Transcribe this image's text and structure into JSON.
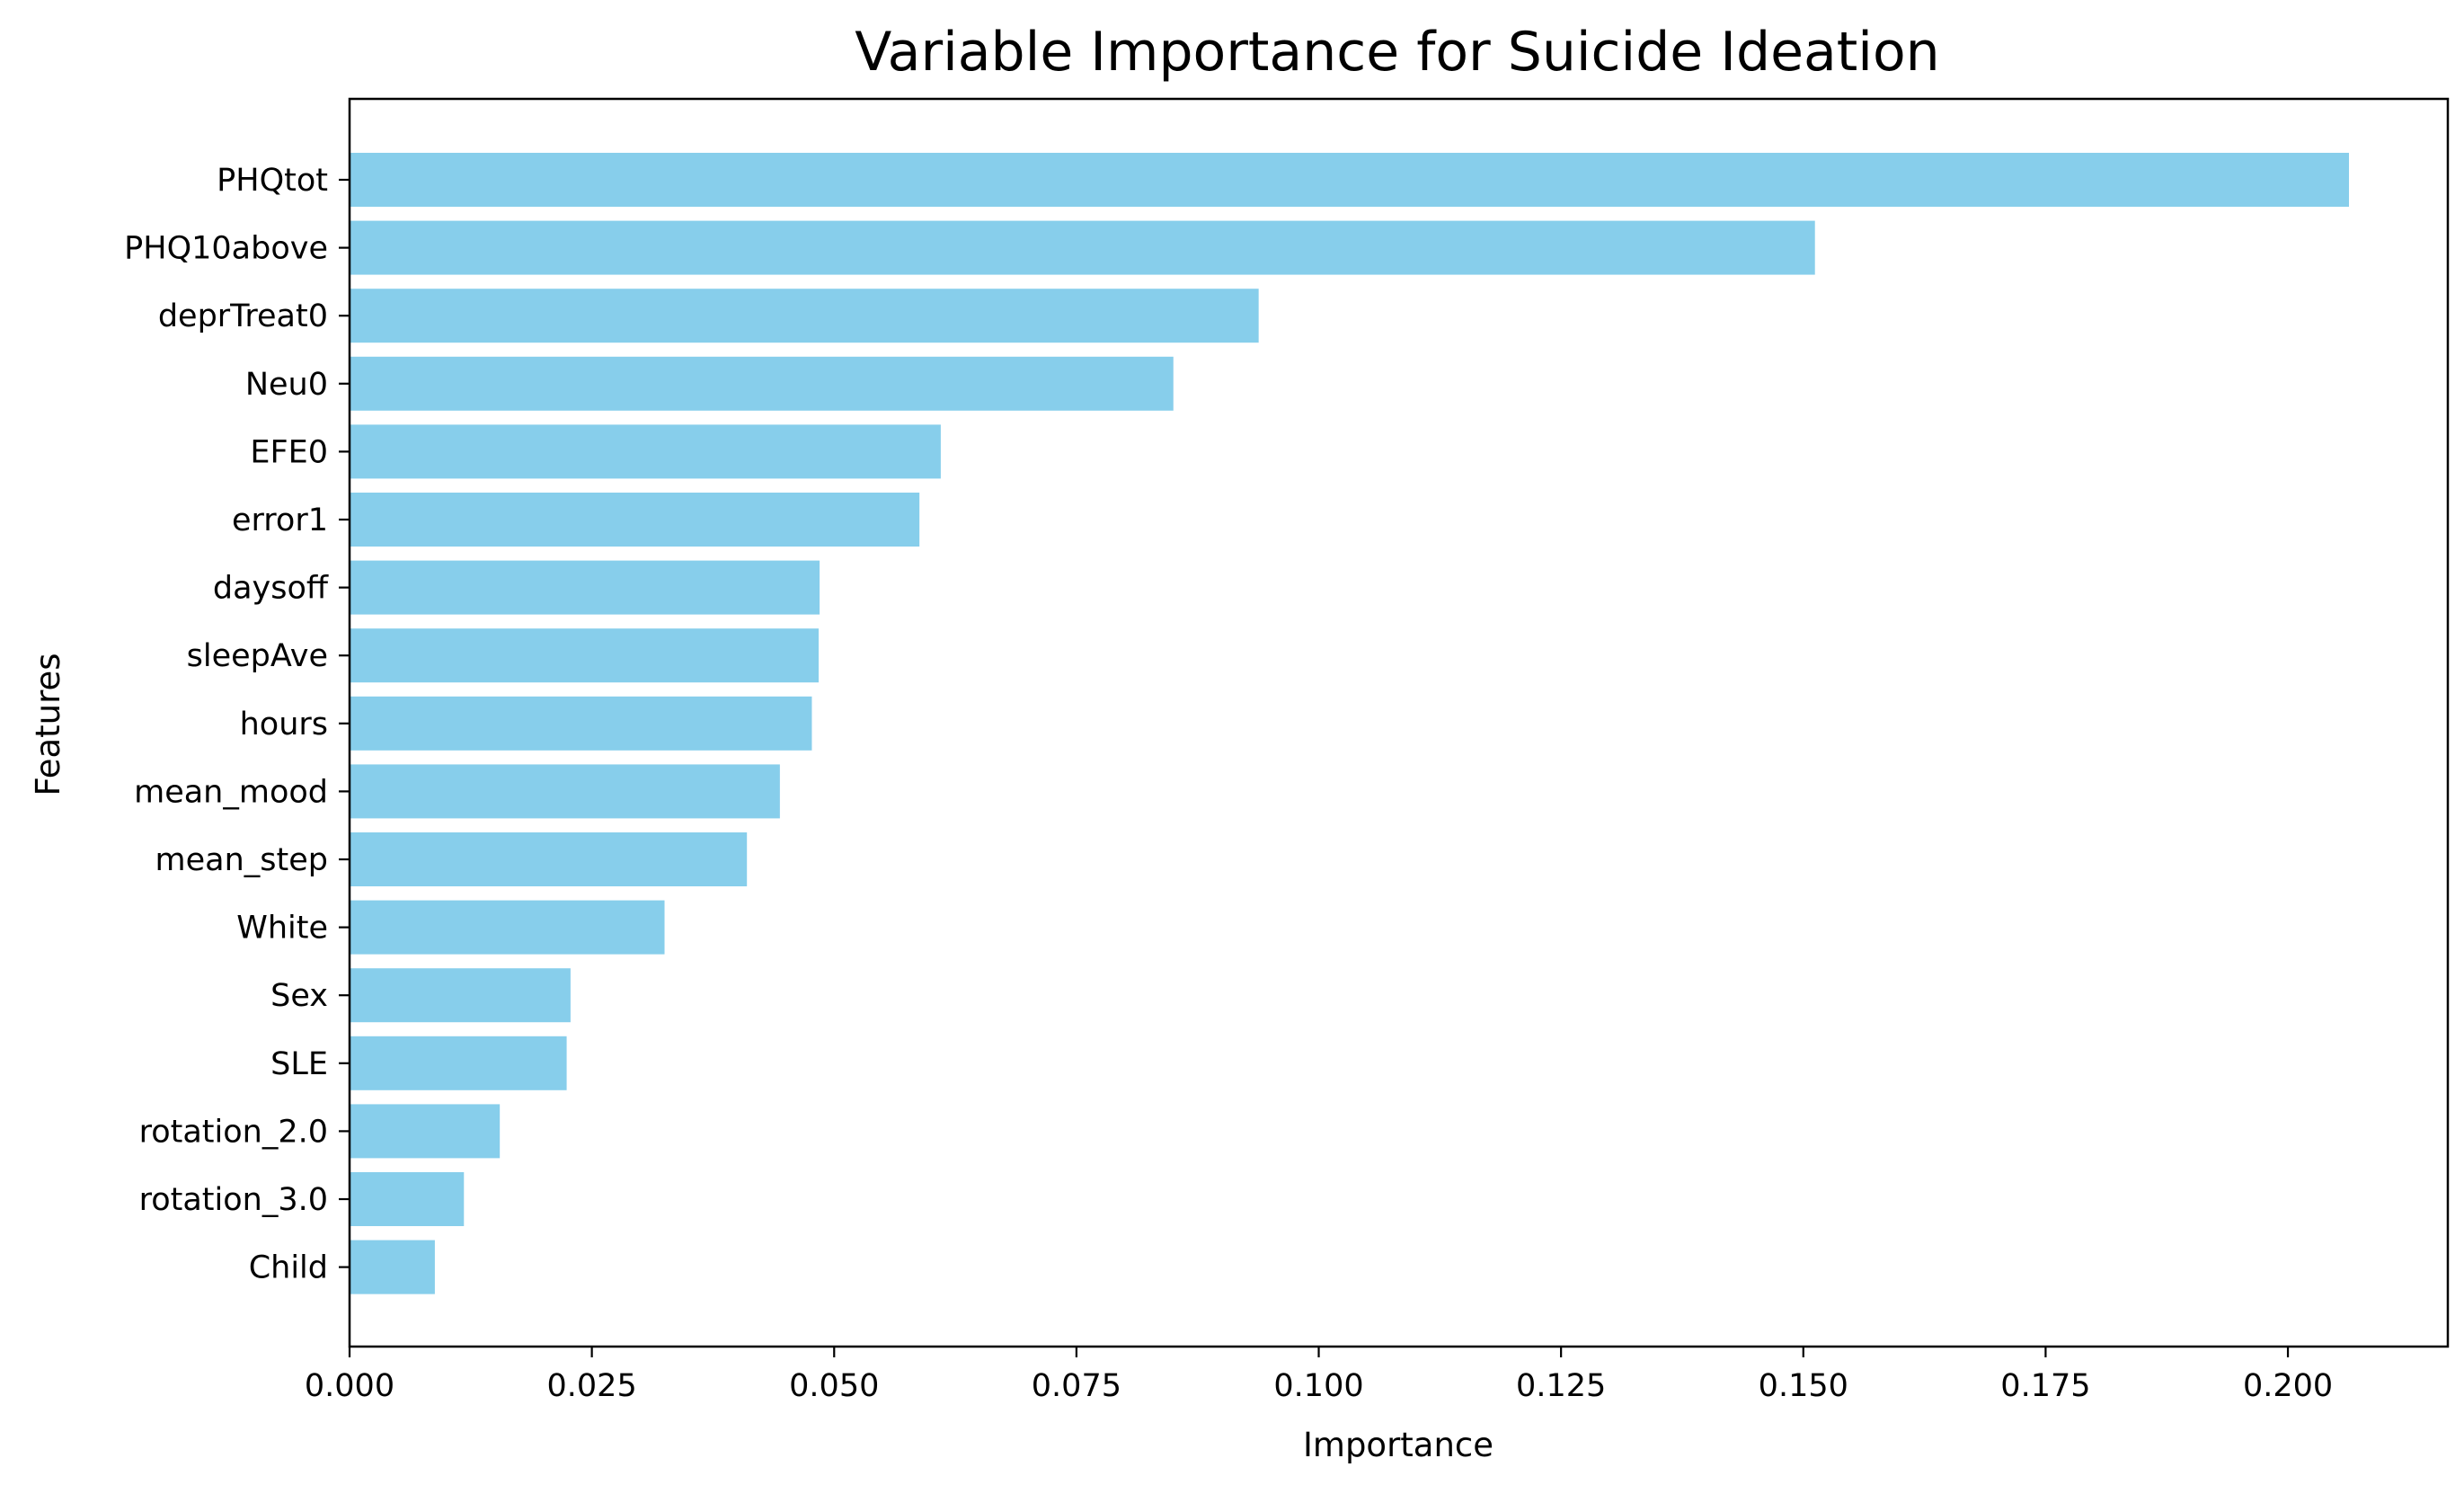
{
  "chart_data": {
    "type": "bar",
    "orientation": "horizontal",
    "title": "Variable Importance for Suicide Ideation",
    "xlabel": "Importance",
    "ylabel": "Features",
    "bar_color": "#87CEEB",
    "grid": false,
    "xlim": [
      0,
      0.2165
    ],
    "xticks": [
      "0.000",
      "0.025",
      "0.050",
      "0.075",
      "0.100",
      "0.125",
      "0.150",
      "0.175",
      "0.200"
    ],
    "categories": [
      "PHQtot",
      "PHQ10above",
      "deprTreat0",
      "Neu0",
      "EFE0",
      "error1",
      "daysoff",
      "sleepAve",
      "hours",
      "mean_mood",
      "mean_step",
      "White",
      "Sex",
      "SLE",
      "rotation_2.0",
      "rotation_3.0",
      "Child"
    ],
    "values": [
      0.2063,
      0.1512,
      0.0938,
      0.085,
      0.061,
      0.0588,
      0.0485,
      0.0484,
      0.0477,
      0.0444,
      0.041,
      0.0325,
      0.0228,
      0.0224,
      0.0155,
      0.0118,
      0.0088
    ]
  }
}
